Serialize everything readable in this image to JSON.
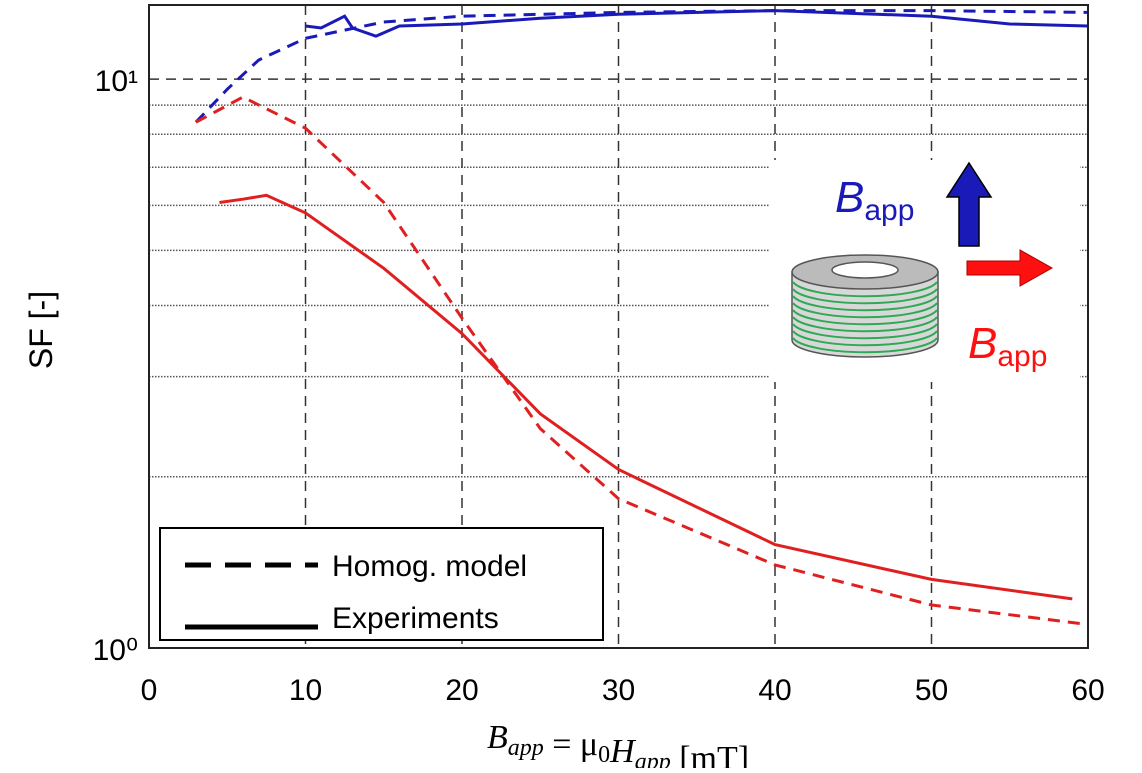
{
  "chart_data": {
    "type": "line",
    "y_label": "SF [-]",
    "x_label": [
      {
        "text": "B",
        "sub": "app"
      },
      {
        "text": " = μ",
        "sub": "0"
      },
      {
        "text": "H",
        "sub": "app"
      },
      {
        "text": " [mT]"
      }
    ],
    "xlim": [
      0,
      60
    ],
    "xticks": [
      0,
      10,
      20,
      30,
      40,
      50,
      60
    ],
    "ylim": [
      1,
      13.5
    ],
    "log_y": true,
    "yticks": [
      {
        "value": 1,
        "label": "10⁰"
      },
      {
        "value": 10,
        "label": "10¹"
      }
    ],
    "minor_yticks": [
      2,
      3,
      4,
      5,
      6,
      7,
      8,
      9
    ],
    "grid": true,
    "series": [
      {
        "color": "#1a1ab8",
        "dash": true,
        "x": [
          3,
          5,
          7,
          10,
          15,
          20,
          30,
          40,
          50,
          60
        ],
        "values": [
          8.4,
          9.6,
          10.8,
          11.8,
          12.6,
          12.9,
          13.1,
          13.2,
          13.2,
          13.1
        ]
      },
      {
        "color": "#1a1ab8",
        "dash": false,
        "x": [
          10,
          11,
          12.5,
          13,
          14.5,
          16,
          20,
          25,
          30,
          40,
          50,
          55,
          60
        ],
        "values": [
          12.4,
          12.3,
          12.9,
          12.3,
          11.9,
          12.4,
          12.5,
          12.8,
          13.0,
          13.2,
          12.9,
          12.5,
          12.4
        ]
      },
      {
        "color": "#e02020",
        "dash": true,
        "x": [
          3,
          6,
          10,
          15,
          20,
          25,
          30,
          40,
          50,
          60
        ],
        "values": [
          8.4,
          9.3,
          8.2,
          6.07,
          3.8,
          2.43,
          1.83,
          1.4,
          1.19,
          1.1
        ]
      },
      {
        "color": "#e02020",
        "dash": false,
        "x": [
          4.5,
          6,
          7.5,
          10,
          15,
          20,
          25,
          30,
          40,
          50,
          59
        ],
        "values": [
          6.07,
          6.15,
          6.25,
          5.82,
          4.65,
          3.57,
          2.58,
          2.06,
          1.52,
          1.32,
          1.22
        ]
      }
    ],
    "legend": [
      {
        "label": "Homog. model",
        "dash": true
      },
      {
        "label": "Experiments",
        "dash": false
      }
    ],
    "annotations": [
      {
        "text": "B",
        "sub": "app",
        "color": "#1a1ab8"
      },
      {
        "text": "B",
        "sub": "app",
        "color": "#ff1010"
      }
    ]
  }
}
